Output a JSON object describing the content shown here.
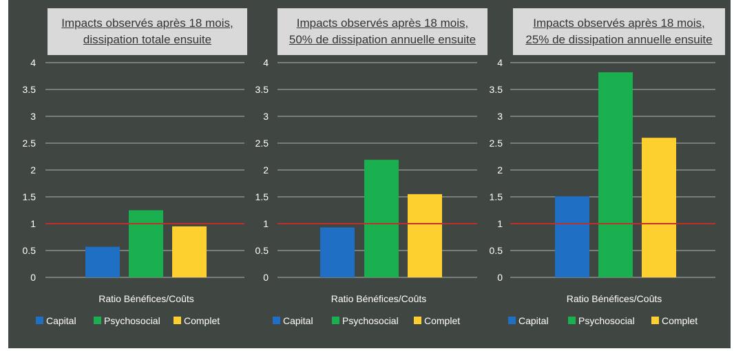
{
  "chart_data": [
    {
      "type": "bar",
      "title": [
        "Impacts observés après 18 mois,",
        "dissipation totale ensuite"
      ],
      "categories": [
        "Ratio Bénéfices/Coûts"
      ],
      "series": [
        {
          "name": "Capital",
          "values": [
            0.57
          ]
        },
        {
          "name": "Psychosocial",
          "values": [
            1.25
          ]
        },
        {
          "name": "Complet",
          "values": [
            0.95
          ]
        }
      ],
      "ylim": [
        0,
        4
      ],
      "yticks": [
        "0",
        "0.5",
        "1",
        "1.5",
        "2",
        "2.5",
        "3",
        "3.5",
        "4"
      ],
      "reference_line": 1,
      "grid": true,
      "legend": "bottom"
    },
    {
      "type": "bar",
      "title": [
        "Impacts observés après 18 mois,",
        "50% de dissipation annuelle ensuite"
      ],
      "categories": [
        "Ratio Bénéfices/Coûts"
      ],
      "series": [
        {
          "name": "Capital",
          "values": [
            0.93
          ]
        },
        {
          "name": "Psychosocial",
          "values": [
            2.19
          ]
        },
        {
          "name": "Complet",
          "values": [
            1.55
          ]
        }
      ],
      "ylim": [
        0,
        4
      ],
      "yticks": [
        "0",
        "0.5",
        "1",
        "1.5",
        "2",
        "2.5",
        "3",
        "3.5",
        "4"
      ],
      "reference_line": 1,
      "grid": true,
      "legend": "bottom"
    },
    {
      "type": "bar",
      "title": [
        "Impacts observés après 18 mois,",
        "25% de dissipation annuelle ensuite"
      ],
      "categories": [
        "Ratio Bénéfices/Coûts"
      ],
      "series": [
        {
          "name": "Capital",
          "values": [
            1.51
          ]
        },
        {
          "name": "Psychosocial",
          "values": [
            3.82
          ]
        },
        {
          "name": "Complet",
          "values": [
            2.6
          ]
        }
      ],
      "ylim": [
        0,
        4
      ],
      "yticks": [
        "0",
        "0.5",
        "1",
        "1.5",
        "2",
        "2.5",
        "3",
        "3.5",
        "4"
      ],
      "reference_line": 1,
      "grid": true,
      "legend": "bottom"
    }
  ],
  "colors": {
    "Capital": "#1f6fc5",
    "Psychosocial": "#1bb04f",
    "Complet": "#fdd02f",
    "reference_line": "#c0302b",
    "grid": "#b0b4ae",
    "background": "#404641",
    "title_box": "#d9d9d9"
  }
}
